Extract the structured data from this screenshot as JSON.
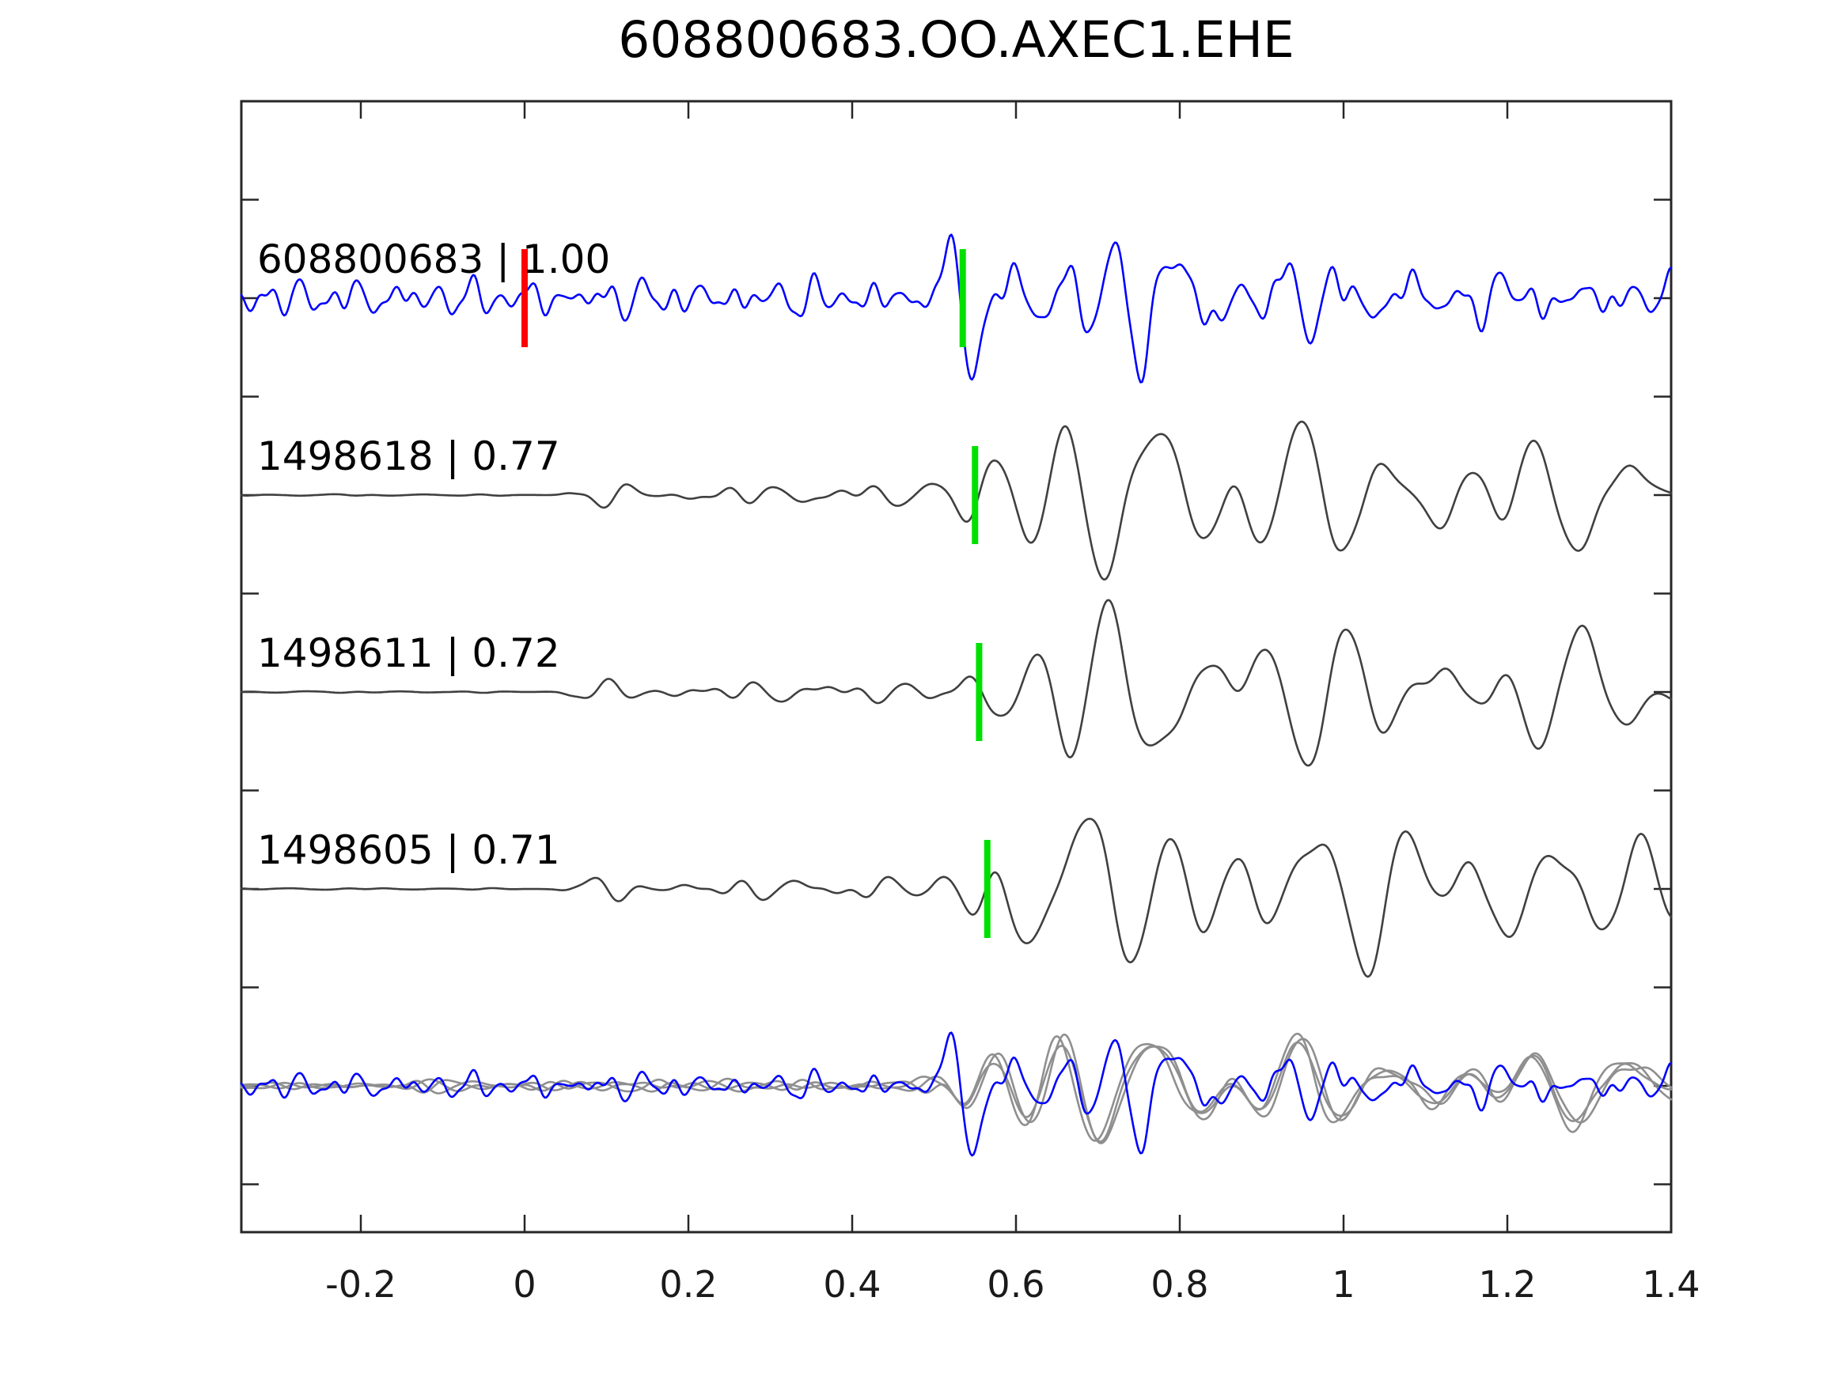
{
  "title": "608800683.OO.AXEC1.EHE",
  "chart_data": {
    "type": "line",
    "title": "608800683.OO.AXEC1.EHE",
    "xlabel": "",
    "ylabel": "",
    "xlim": [
      -0.346,
      1.4
    ],
    "grid": false,
    "legend": "none",
    "x_axis": {
      "ticks": [
        {
          "v": -0.2,
          "label": "-0.2"
        },
        {
          "v": 0,
          "label": "0"
        },
        {
          "v": 0.2,
          "label": "0.2"
        },
        {
          "v": 0.4,
          "label": "0.4"
        },
        {
          "v": 0.6,
          "label": "0.6"
        },
        {
          "v": 0.8,
          "label": "0.8"
        },
        {
          "v": 1.0,
          "label": "1"
        },
        {
          "v": 1.2,
          "label": "1.2"
        },
        {
          "v": 1.4,
          "label": "1.4"
        }
      ]
    },
    "y_axis": {
      "ticks": [
        0.5,
        0,
        -0.5,
        -1,
        -1.5,
        -2,
        -2.5,
        -3,
        -3.5,
        -4,
        -4.5
      ],
      "labels_shown": false
    },
    "colors": {
      "template": "#0000ff",
      "detection": "#404040",
      "overlay_detection": "#8f8f8f",
      "pick_marker": "#00e000",
      "reference_marker": "#ff0000",
      "axis": "#262626",
      "label_text": "#000000"
    },
    "traces": [
      {
        "event_id": "608800683",
        "correlation": "1.00",
        "label": "608800683 | 1.00",
        "role": "template",
        "color_key": "template",
        "row": 0,
        "z": 3,
        "pick_time": 0.535,
        "reference_time": 0,
        "synth": {
          "noise": [
            {
              "f": 28.7,
              "a": 1,
              "p": 0.7
            },
            {
              "f": 19.3,
              "a": 0.8,
              "p": 2.1
            },
            {
              "f": 41.1,
              "a": 0.55,
              "p": 4.2
            },
            {
              "f": 13.9,
              "a": 0.65,
              "p": 1.1
            },
            {
              "f": 53.3,
              "a": 0.3,
              "p": 3.3
            },
            {
              "f": 23.9,
              "a": 0.85,
              "p": 5.6
            }
          ],
          "signal": [
            {
              "f": 14.6,
              "a": 1,
              "p": 4.4
            },
            {
              "f": 10.2,
              "a": 0.8,
              "p": 0.4
            },
            {
              "f": 18.9,
              "a": 0.5,
              "p": 3.9
            },
            {
              "f": 7.3,
              "a": 0.35,
              "p": 2.6
            }
          ],
          "env": {
            "noise_amp": 38,
            "ta": 0.55,
            "attack": 0.06,
            "peak": 150,
            "tau": 0.38,
            "coda": 28
          }
        }
      },
      {
        "event_id": "1498618",
        "correlation": "0.77",
        "label": "1498618 | 0.77",
        "role": "detection",
        "color_key": "detection",
        "row": 1,
        "z": 2,
        "pick_time": 0.55,
        "synth": {
          "noise": [
            {
              "f": 16.4,
              "a": 1,
              "p": 1.3
            },
            {
              "f": 11.1,
              "a": 0.75,
              "p": 4.7
            },
            {
              "f": 22.7,
              "a": 0.5,
              "p": 2.9
            },
            {
              "f": 7.8,
              "a": 0.6,
              "p": 0.6
            },
            {
              "f": 29.3,
              "a": 0.25,
              "p": 5.1
            }
          ],
          "signal": [
            {
              "f": 10.4,
              "a": 1,
              "p": 2.0
            },
            {
              "f": 6.9,
              "a": 0.8,
              "p": 5.2
            },
            {
              "f": 13.8,
              "a": 0.45,
              "p": 1.2
            },
            {
              "f": 4.8,
              "a": 0.4,
              "p": 3.6
            }
          ],
          "env": {
            "quiet_amp": 1.5,
            "quiet_until": 0.03,
            "noise_amp": 18,
            "ta": 0.565,
            "attack": 0.09,
            "peak": 150,
            "tau": 1.4,
            "coda": 75
          }
        }
      },
      {
        "event_id": "1498611",
        "correlation": "0.72",
        "label": "1498611 | 0.72",
        "role": "detection",
        "color_key": "detection",
        "row": 2,
        "z": 2,
        "pick_time": 0.555,
        "synth": {
          "noise": [
            {
              "f": 16.4,
              "a": 1,
              "p": 3.9
            },
            {
              "f": 11.1,
              "a": 0.75,
              "p": 0.8
            },
            {
              "f": 22.7,
              "a": 0.5,
              "p": 5.3
            },
            {
              "f": 7.8,
              "a": 0.6,
              "p": 2.2
            },
            {
              "f": 29.3,
              "a": 0.25,
              "p": 1.7
            }
          ],
          "signal": [
            {
              "f": 10.4,
              "a": 1,
              "p": 5.0
            },
            {
              "f": 6.9,
              "a": 0.8,
              "p": 1.9
            },
            {
              "f": 13.8,
              "a": 0.45,
              "p": 3.3
            },
            {
              "f": 4.8,
              "a": 0.4,
              "p": 0.2
            }
          ],
          "env": {
            "quiet_amp": 1.5,
            "quiet_until": 0.03,
            "noise_amp": 18,
            "ta": 0.57,
            "attack": 0.09,
            "peak": 146,
            "tau": 1.4,
            "coda": 72
          }
        }
      },
      {
        "event_id": "1498605",
        "correlation": "0.71",
        "label": "1498605 | 0.71",
        "role": "detection",
        "color_key": "detection",
        "row": 3,
        "z": 2,
        "pick_time": 0.565,
        "synth": {
          "noise": [
            {
              "f": 16.4,
              "a": 1,
              "p": 5.7
            },
            {
              "f": 11.1,
              "a": 0.75,
              "p": 2.6
            },
            {
              "f": 22.7,
              "a": 0.5,
              "p": 0.9
            },
            {
              "f": 7.8,
              "a": 0.6,
              "p": 4.1
            },
            {
              "f": 29.3,
              "a": 0.25,
              "p": 3.0
            }
          ],
          "signal": [
            {
              "f": 10.4,
              "a": 1,
              "p": 0.8
            },
            {
              "f": 6.9,
              "a": 0.8,
              "p": 4.0
            },
            {
              "f": 13.8,
              "a": 0.45,
              "p": 2.5
            },
            {
              "f": 4.8,
              "a": 0.4,
              "p": 5.5
            }
          ],
          "env": {
            "quiet_amp": 1.5,
            "quiet_until": 0.03,
            "noise_amp": 19,
            "ta": 0.58,
            "attack": 0.09,
            "peak": 153,
            "tau": 1.4,
            "coda": 78
          }
        }
      },
      {
        "role": "overlay-detection",
        "color_key": "overlay_detection",
        "row": 4,
        "z": 1,
        "synth": {
          "noise": [
            {
              "f": 16.4,
              "a": 1,
              "p": 2.4
            },
            {
              "f": 11.1,
              "a": 0.75,
              "p": 5.5
            },
            {
              "f": 22.7,
              "a": 0.5,
              "p": 1.1
            },
            {
              "f": 7.8,
              "a": 0.6,
              "p": 3.8
            },
            {
              "f": 29.3,
              "a": 0.25,
              "p": 0.3
            }
          ],
          "signal": [
            {
              "f": 10.4,
              "a": 1,
              "p": 2.0
            },
            {
              "f": 6.9,
              "a": 0.8,
              "p": 5.2
            },
            {
              "f": 13.8,
              "a": 0.45,
              "p": 1.2
            },
            {
              "f": 4.8,
              "a": 0.4,
              "p": 3.6
            }
          ],
          "env": {
            "quiet_amp": 6,
            "quiet_until": -0.2,
            "noise_amp": 11,
            "ta": 0.555,
            "attack": 0.08,
            "peak": 120,
            "tau": 0.8,
            "coda": 55
          }
        }
      },
      {
        "role": "overlay-detection",
        "color_key": "overlay_detection",
        "row": 4,
        "z": 1,
        "synth": {
          "noise": [
            {
              "f": 16.4,
              "a": 1,
              "p": 0.9
            },
            {
              "f": 11.1,
              "a": 0.75,
              "p": 3.2
            },
            {
              "f": 22.7,
              "a": 0.5,
              "p": 4.8
            },
            {
              "f": 7.8,
              "a": 0.6,
              "p": 1.5
            },
            {
              "f": 29.3,
              "a": 0.25,
              "p": 5.9
            }
          ],
          "signal": [
            {
              "f": 10.4,
              "a": 1,
              "p": 2.25
            },
            {
              "f": 6.9,
              "a": 0.8,
              "p": 5.45
            },
            {
              "f": 13.8,
              "a": 0.45,
              "p": 1.45
            },
            {
              "f": 4.8,
              "a": 0.4,
              "p": 3.85
            }
          ],
          "env": {
            "quiet_amp": 6,
            "quiet_until": -0.2,
            "noise_amp": 10,
            "ta": 0.558,
            "attack": 0.08,
            "peak": 112,
            "tau": 0.8,
            "coda": 52
          }
        }
      },
      {
        "role": "overlay-detection",
        "color_key": "overlay_detection",
        "row": 4,
        "z": 1,
        "synth": {
          "noise": [
            {
              "f": 16.4,
              "a": 1,
              "p": 4.4
            },
            {
              "f": 11.1,
              "a": 0.75,
              "p": 1.9
            },
            {
              "f": 22.7,
              "a": 0.5,
              "p": 3.5
            },
            {
              "f": 7.8,
              "a": 0.6,
              "p": 5.2
            },
            {
              "f": 29.3,
              "a": 0.25,
              "p": 2.1
            }
          ],
          "signal": [
            {
              "f": 10.4,
              "a": 1,
              "p": 2.5
            },
            {
              "f": 6.9,
              "a": 0.8,
              "p": 5.7
            },
            {
              "f": 13.8,
              "a": 0.45,
              "p": 1.7
            },
            {
              "f": 4.8,
              "a": 0.4,
              "p": 4.1
            }
          ],
          "env": {
            "quiet_amp": 6,
            "quiet_until": -0.2,
            "noise_amp": 11,
            "ta": 0.561,
            "attack": 0.08,
            "peak": 126,
            "tau": 0.8,
            "coda": 58
          }
        }
      },
      {
        "role": "overlay-template",
        "color_key": "template",
        "row": 4,
        "z": 4,
        "synth": {
          "noise": [
            {
              "f": 28.7,
              "a": 1,
              "p": 0.7
            },
            {
              "f": 19.3,
              "a": 0.8,
              "p": 2.1
            },
            {
              "f": 41.1,
              "a": 0.55,
              "p": 4.2
            },
            {
              "f": 13.9,
              "a": 0.65,
              "p": 1.1
            },
            {
              "f": 53.3,
              "a": 0.3,
              "p": 3.3
            },
            {
              "f": 23.9,
              "a": 0.85,
              "p": 5.6
            }
          ],
          "signal": [
            {
              "f": 14.6,
              "a": 1,
              "p": 4.4
            },
            {
              "f": 10.2,
              "a": 0.8,
              "p": 0.4
            },
            {
              "f": 18.9,
              "a": 0.5,
              "p": 3.9
            },
            {
              "f": 7.3,
              "a": 0.35,
              "p": 2.6
            }
          ],
          "env": {
            "noise_amp": 26,
            "ta": 0.55,
            "attack": 0.06,
            "peak": 135,
            "tau": 0.34,
            "coda": 24
          }
        }
      }
    ]
  }
}
